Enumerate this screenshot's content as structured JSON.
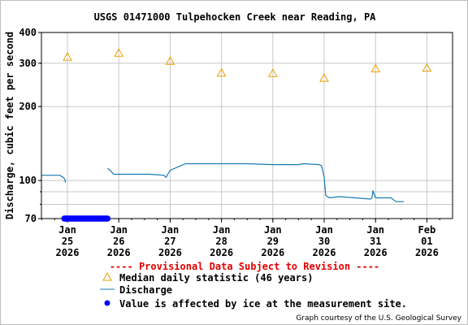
{
  "chart_data": {
    "type": "line",
    "title": "USGS 01471000 Tulpehocken Creek near Reading, PA",
    "ylabel": "Discharge, cubic feet per second",
    "xlabel": "",
    "y_scale": "log",
    "ylim": [
      70,
      400
    ],
    "xlim": [
      0,
      7.5
    ],
    "grid": true,
    "x_ticks": [
      {
        "x": 0,
        "line1": "Jan",
        "line2": "25",
        "line3": "2026"
      },
      {
        "x": 1,
        "line1": "Jan",
        "line2": "26",
        "line3": "2026"
      },
      {
        "x": 2,
        "line1": "Jan",
        "line2": "27",
        "line3": "2026"
      },
      {
        "x": 3,
        "line1": "Jan",
        "line2": "28",
        "line3": "2026"
      },
      {
        "x": 4,
        "line1": "Jan",
        "line2": "29",
        "line3": "2026"
      },
      {
        "x": 5,
        "line1": "Jan",
        "line2": "30",
        "line3": "2026"
      },
      {
        "x": 6,
        "line1": "Jan",
        "line2": "31",
        "line3": "2026"
      },
      {
        "x": 7,
        "line1": "Feb",
        "line2": "01",
        "line3": "2026"
      }
    ],
    "y_tick_labels": [
      {
        "value": 70,
        "label": "70"
      },
      {
        "value": 100,
        "label": "100"
      },
      {
        "value": 200,
        "label": "200"
      },
      {
        "value": 300,
        "label": "300"
      },
      {
        "value": 400,
        "label": "400"
      }
    ],
    "y_gridlines": [
      80,
      90,
      100,
      200,
      300,
      400
    ],
    "series": [
      {
        "name": "Median daily statistic (46 years)",
        "kind": "triangle-marker",
        "color": "#e8a000",
        "points": [
          [
            0,
            318
          ],
          [
            1,
            330
          ],
          [
            2,
            306
          ],
          [
            3,
            274
          ],
          [
            4,
            273
          ],
          [
            5,
            261
          ],
          [
            6,
            285
          ],
          [
            7,
            287
          ]
        ]
      },
      {
        "name": "Discharge",
        "kind": "line",
        "color": "#1a7ab0",
        "segments": [
          [
            [
              -0.5,
              105
            ],
            [
              -0.15,
              105
            ],
            [
              -0.08,
              103
            ],
            [
              -0.05,
              101
            ],
            [
              -0.04,
              98
            ]
          ],
          [
            [
              0.78,
              112
            ],
            [
              0.83,
              110
            ],
            [
              0.9,
              106
            ],
            [
              1.2,
              106
            ],
            [
              1.6,
              106
            ],
            [
              1.88,
              105
            ],
            [
              1.92,
              103
            ],
            [
              2.0,
              110
            ],
            [
              2.3,
              117
            ],
            [
              3.0,
              117
            ],
            [
              3.5,
              117
            ],
            [
              4.0,
              116
            ],
            [
              4.5,
              116
            ],
            [
              4.6,
              117
            ],
            [
              4.9,
              116
            ],
            [
              4.95,
              115
            ],
            [
              5.0,
              103
            ],
            [
              5.03,
              87
            ],
            [
              5.1,
              85
            ],
            [
              5.3,
              86
            ],
            [
              5.6,
              85
            ],
            [
              5.9,
              84
            ],
            [
              5.93,
              85
            ],
            [
              5.95,
              91
            ],
            [
              6.0,
              85
            ],
            [
              6.3,
              85
            ],
            [
              6.4,
              82
            ],
            [
              6.55,
              82
            ]
          ]
        ]
      },
      {
        "name": "Value is affected by ice at the measurement site.",
        "kind": "ice-dots",
        "color": "#0000ff",
        "x_range": [
          -0.06,
          0.78
        ],
        "y": 70
      }
    ],
    "legend_placement": "bottom",
    "provisional_note": "---- Provisional Data Subject to Revision ----",
    "credit": "Graph courtesy of the U.S. Geological Survey"
  }
}
